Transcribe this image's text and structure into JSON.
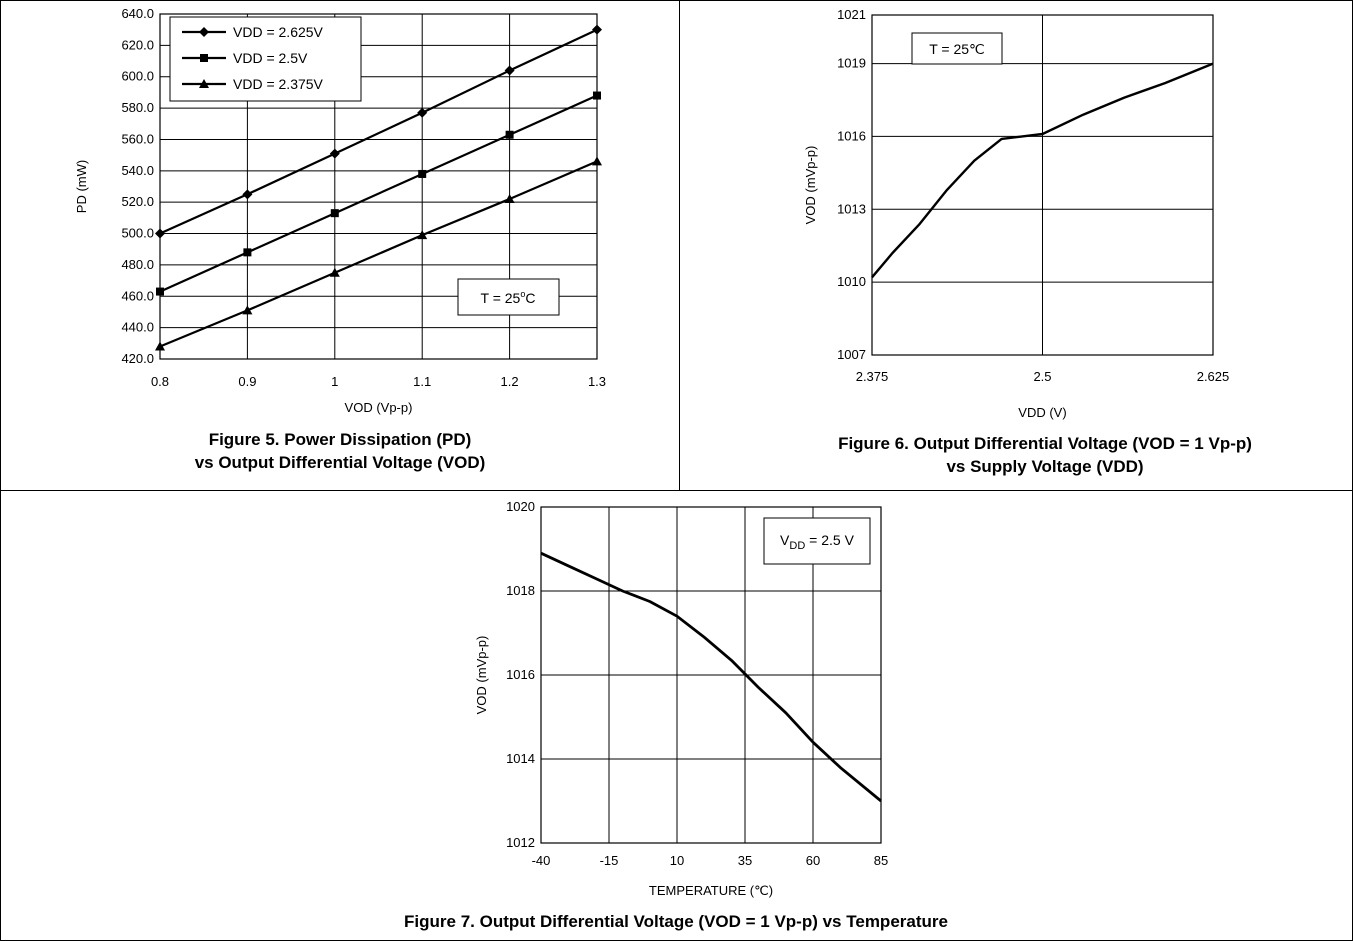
{
  "chart_data": [
    {
      "type": "line",
      "title": "",
      "xlabel": "VOD (Vp-p)",
      "ylabel": "PD (mW)",
      "xlim": [
        0.8,
        1.3
      ],
      "ylim": [
        420.0,
        640.0
      ],
      "x_ticks": [
        "0.8",
        "0.9",
        "1",
        "1.1",
        "1.2",
        "1.3"
      ],
      "y_ticks": [
        "420.0",
        "440.0",
        "460.0",
        "480.0",
        "500.0",
        "520.0",
        "540.0",
        "560.0",
        "580.0",
        "600.0",
        "620.0",
        "640.0"
      ],
      "grid": true,
      "legend": "top-left",
      "x": [
        0.8,
        0.9,
        1.0,
        1.1,
        1.2,
        1.3
      ],
      "series": [
        {
          "name": "VDD = 2.625V",
          "marker": "diamond",
          "values": [
            500.0,
            525.0,
            551.0,
            577.0,
            604.0,
            630.0
          ]
        },
        {
          "name": "VDD = 2.5V",
          "marker": "square",
          "values": [
            463.0,
            488.0,
            513.0,
            538.0,
            563.0,
            588.0
          ]
        },
        {
          "name": "VDD = 2.375V",
          "marker": "triangle",
          "values": [
            428.0,
            451.0,
            475.0,
            499.0,
            522.0,
            546.0
          ]
        }
      ],
      "annotation": {
        "text": "T = 25",
        "sup": "o",
        "suffix": "C"
      },
      "caption_lines": [
        "Figure 5. Power Dissipation (PD)",
        "vs Output Differential Voltage (VOD)"
      ]
    },
    {
      "type": "line",
      "title": "",
      "xlabel": "VDD (V)",
      "ylabel": "VOD (mVp-p)",
      "xlim": [
        2.375,
        2.625
      ],
      "ylim": [
        1007,
        1021
      ],
      "x_ticks": [
        "2.375",
        "2.5",
        "2.625"
      ],
      "y_ticks": [
        "1007",
        "1010",
        "1013",
        "1016",
        "1019",
        "1021"
      ],
      "y_tick_values": [
        1007,
        1010,
        1013,
        1016,
        1019,
        1021
      ],
      "grid": true,
      "series": [
        {
          "name": "",
          "x": [
            2.375,
            2.39,
            2.41,
            2.43,
            2.45,
            2.47,
            2.5,
            2.53,
            2.56,
            2.59,
            2.625
          ],
          "values": [
            1010.2,
            1011.2,
            1012.4,
            1013.8,
            1015.0,
            1015.9,
            1016.1,
            1016.9,
            1017.6,
            1018.2,
            1019.0
          ]
        }
      ],
      "annotation": {
        "text": "T = 25℃"
      },
      "caption_lines": [
        "Figure 6. Output Differential Voltage (VOD = 1 Vp-p)",
        "vs Supply Voltage (VDD)"
      ]
    },
    {
      "type": "line",
      "title": "",
      "xlabel": "TEMPERATURE (℃)",
      "ylabel": "VOD (mVp-p)",
      "xlim": [
        -40,
        85
      ],
      "ylim": [
        1012,
        1020
      ],
      "x_ticks": [
        "-40",
        "-15",
        "10",
        "35",
        "60",
        "85"
      ],
      "y_ticks": [
        "1012",
        "1014",
        "1016",
        "1018",
        "1020"
      ],
      "grid": true,
      "series": [
        {
          "name": "",
          "x": [
            -40,
            -30,
            -20,
            -10,
            0,
            10,
            20,
            30,
            40,
            50,
            60,
            70,
            85
          ],
          "values": [
            1018.9,
            1018.6,
            1018.3,
            1018.0,
            1017.75,
            1017.4,
            1016.9,
            1016.35,
            1015.7,
            1015.1,
            1014.4,
            1013.8,
            1013.0
          ]
        }
      ],
      "annotation": {
        "prefix": "V",
        "sub": "DD",
        "suffix": " = 2.5 V"
      },
      "caption_lines": [
        "Figure 7. Output Differential Voltage (VOD = 1 Vp-p) vs Temperature"
      ]
    }
  ]
}
